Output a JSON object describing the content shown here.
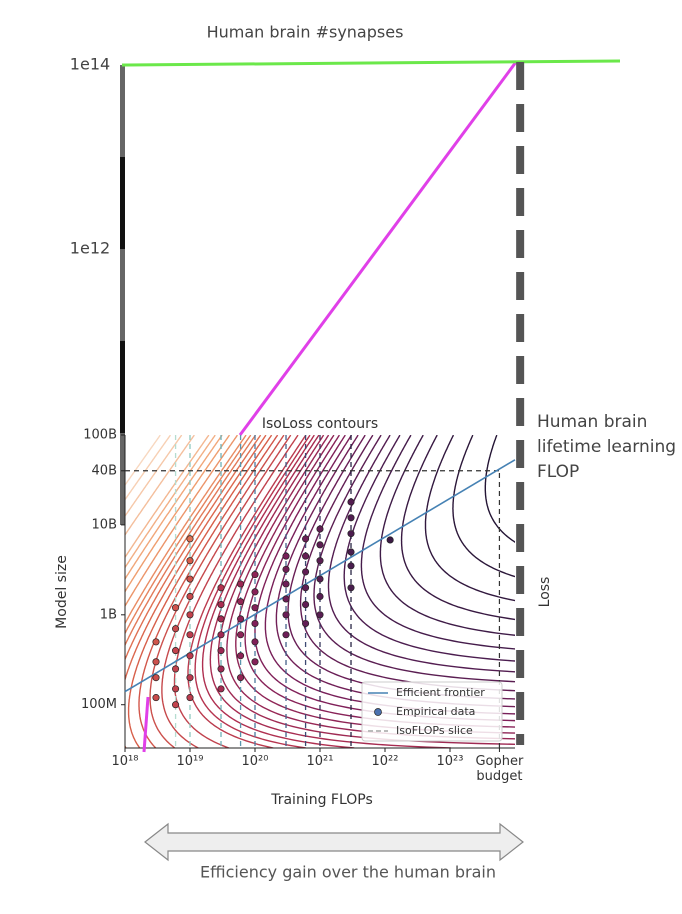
{
  "chart_data": {
    "type": "scatter",
    "title": "IsoLoss contours",
    "x_label": "Training FLOPs",
    "y_label": "Model size",
    "colorbar_label": "Loss",
    "xscale": "log",
    "yscale": "log",
    "xlim": [
      1e+18,
      1e+24
    ],
    "ylim": [
      33000000.0,
      100000000000.0
    ],
    "xticks": [
      {
        "value": 1e+18,
        "label": "10¹⁸"
      },
      {
        "value": 1e+19,
        "label": "10¹⁹"
      },
      {
        "value": 1e+20,
        "label": "10²⁰"
      },
      {
        "value": 1e+21,
        "label": "10²¹"
      },
      {
        "value": 1e+22,
        "label": "10²²"
      },
      {
        "value": 1e+23,
        "label": "10²³"
      },
      {
        "value": 5.76e+23,
        "label": "Gopher budget",
        "guide": true
      }
    ],
    "yticks": [
      {
        "value": 100000000.0,
        "label": "100M"
      },
      {
        "value": 1000000000.0,
        "label": "1B"
      },
      {
        "value": 10000000000.0,
        "label": "10B"
      },
      {
        "value": 40000000000.0,
        "label": "40B",
        "guide": true
      },
      {
        "value": 100000000000.0,
        "label": "100B"
      }
    ],
    "colormap": [
      "#1e1430",
      "#4a1d4f",
      "#7d1f5a",
      "#b3304f",
      "#d9614a",
      "#f0a070",
      "#f8d8c0"
    ],
    "contour_levels": [
      1.9,
      1.95,
      2,
      2.05,
      2.1,
      2.15,
      2.2,
      2.25,
      2.3,
      2.35,
      2.4,
      2.45,
      2.5,
      2.55,
      2.6,
      2.65,
      2.7,
      2.75,
      2.8,
      2.85,
      2.9,
      2.95,
      3,
      3.1,
      3.2,
      3.3,
      3.4,
      3.5,
      3.6,
      3.7,
      3.8,
      3.9,
      4,
      4.2,
      4.4,
      4.6,
      4.8,
      5,
      5.5,
      6,
      6.5,
      7
    ],
    "legend": "lower right",
    "series": [
      {
        "name": "Efficient frontier",
        "type": "line",
        "color": "#4682b4",
        "x": [
          1e+18,
          1e+24
        ],
        "values": [
          140000000.0,
          53000000000.0
        ]
      },
      {
        "name": "Empirical data",
        "type": "scatter",
        "color": "#4c72b0",
        "x": [
          3e+18,
          3e+18,
          3e+18,
          3e+18,
          6e+18,
          6e+18,
          6e+18,
          6e+18,
          6e+18,
          6e+18,
          1e+19,
          1e+19,
          1e+19,
          1e+19,
          1e+19,
          1e+19,
          1e+19,
          1e+19,
          1e+19,
          3e+19,
          3e+19,
          3e+19,
          3e+19,
          3e+19,
          3e+19,
          3e+19,
          6e+19,
          6e+19,
          6e+19,
          6e+19,
          6e+19,
          6e+19,
          1e+20,
          1e+20,
          1e+20,
          1e+20,
          1e+20,
          1e+20,
          3e+20,
          3e+20,
          3e+20,
          3e+20,
          3e+20,
          3e+20,
          6e+20,
          6e+20,
          6e+20,
          6e+20,
          6e+20,
          6e+20,
          1e+21,
          1e+21,
          1e+21,
          1e+21,
          1e+21,
          1e+21,
          3e+21,
          3e+21,
          3e+21,
          3e+21,
          3e+21,
          3e+21,
          1.2e+22
        ],
        "values": [
          120000000.0,
          200000000.0,
          300000000.0,
          500000000.0,
          100000000.0,
          150000000.0,
          250000000.0,
          400000000.0,
          700000000.0,
          1200000000.0,
          120000000.0,
          200000000.0,
          350000000.0,
          600000000.0,
          1000000000.0,
          1600000000.0,
          2500000000.0,
          4000000000.0,
          7000000000.0,
          150000000.0,
          250000000.0,
          400000000.0,
          600000000.0,
          900000000.0,
          1300000000.0,
          2000000000.0,
          200000000.0,
          350000000.0,
          600000000.0,
          900000000.0,
          1400000000.0,
          2200000000.0,
          300000000.0,
          500000000.0,
          800000000.0,
          1200000000.0,
          1800000000.0,
          2800000000.0,
          600000000.0,
          1000000000.0,
          1500000000.0,
          2200000000.0,
          3200000000.0,
          4500000000.0,
          800000000.0,
          1300000000.0,
          2000000000.0,
          3000000000.0,
          4500000000.0,
          7000000000.0,
          1000000000.0,
          1600000000.0,
          2500000000.0,
          4000000000.0,
          6000000000.0,
          9000000000.0,
          2000000000.0,
          3500000000.0,
          5000000000.0,
          8000000000.0,
          12000000000.0,
          18000000000.0,
          6800000000.0
        ]
      },
      {
        "name": "IsoFLOPs slice",
        "type": "vline",
        "color": "#bbbbbb",
        "x": [
          6e+18,
          1e+19,
          3e+19,
          6e+19,
          1e+20,
          3e+20,
          6e+20,
          1e+21,
          3e+21
        ],
        "colors": [
          "#b5ddd0",
          "#8fc9c0",
          "#6fb1b8",
          "#5a96ad",
          "#4d7a9e",
          "#45608a",
          "#3e4a73",
          "#35365c",
          "#2a2645"
        ]
      }
    ],
    "annotations": {
      "outer_axis": {
        "ylim": [
          1000000000.0,
          100000000000000.0
        ],
        "yticks": [
          {
            "value": 1000000000000.0,
            "label": "1e12"
          },
          {
            "value": 100000000000000.0,
            "label": "1e14"
          }
        ]
      },
      "brain_synapses": {
        "label": "Human brain #synapses",
        "value": 100000000000000.0,
        "color": "#6be84a"
      },
      "brain_flop": {
        "label": "Human brain lifetime learning FLOP",
        "value": 1.2e+24,
        "color": "#555555"
      },
      "efficiency": "Efficiency gain over the human brain"
    }
  }
}
